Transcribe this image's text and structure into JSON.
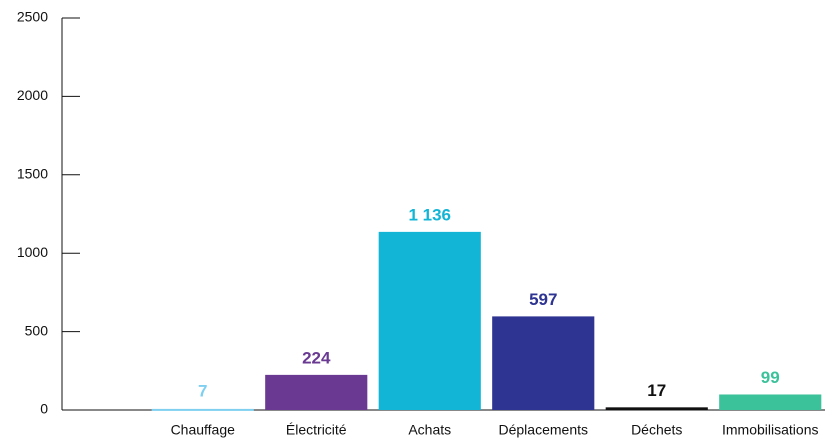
{
  "chart_data": {
    "type": "bar",
    "categories": [
      "Chauffage",
      "Électricité",
      "Achats",
      "Déplacements",
      "Déchets",
      "Immobilisations"
    ],
    "values": [
      7,
      224,
      1136,
      597,
      17,
      99
    ],
    "value_labels": [
      "7",
      "224",
      "1 136",
      "597",
      "17",
      "99"
    ],
    "colors": [
      "#7fd0f0",
      "#6a3a93",
      "#13b5d6",
      "#2e3492",
      "#111111",
      "#3cc29a"
    ],
    "ylim": [
      0,
      2500
    ],
    "yticks": [
      0,
      500,
      1000,
      1500,
      2000,
      2500
    ]
  }
}
